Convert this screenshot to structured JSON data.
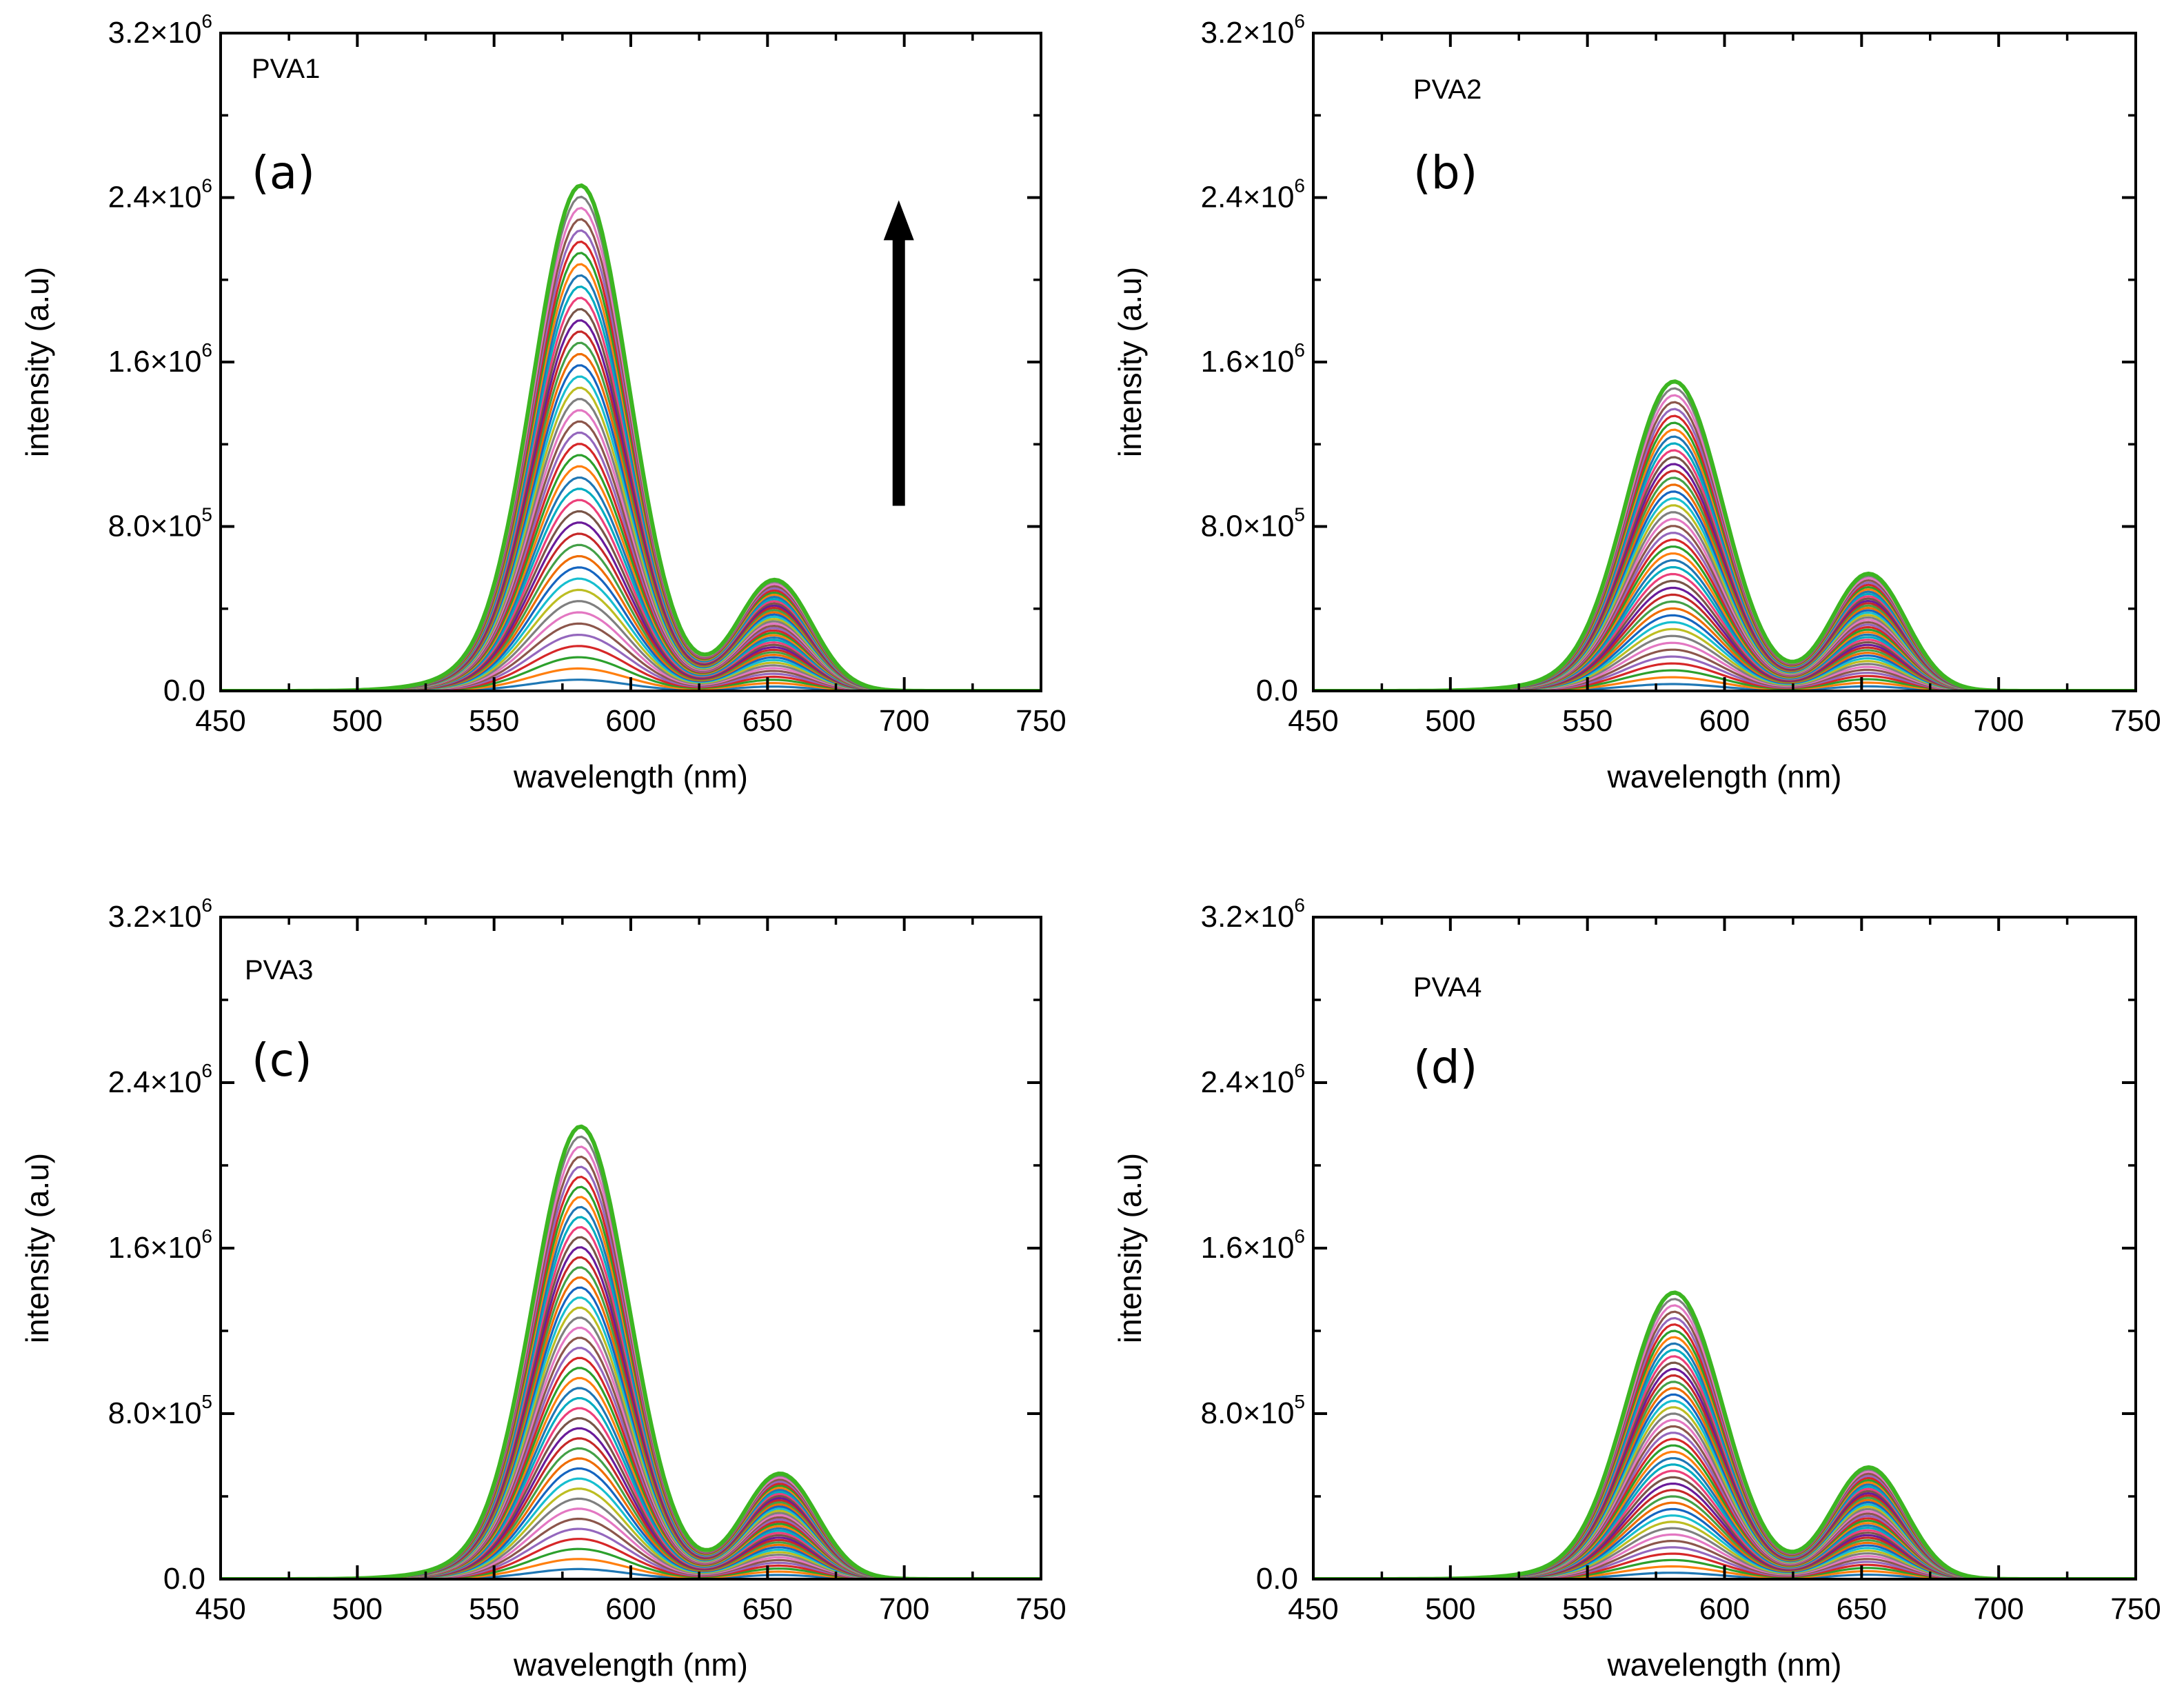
{
  "figure": {
    "x_tick_labels": [
      "450",
      "500",
      "550",
      "600",
      "650",
      "700",
      "750"
    ],
    "y_tick_labels": [
      {
        "mantissa": "0.0",
        "exp": ""
      },
      {
        "mantissa": "8.0×10",
        "exp": "5"
      },
      {
        "mantissa": "1.6×10",
        "exp": "6"
      },
      {
        "mantissa": "2.4×10",
        "exp": "6"
      },
      {
        "mantissa": "3.2×10",
        "exp": "6"
      }
    ],
    "series_colors": [
      "#1f77b4",
      "#ff7f0e",
      "#2ca02c",
      "#d62728",
      "#9467bd",
      "#8c564b",
      "#e377c2",
      "#7f7f7f",
      "#bcbd22",
      "#17becf",
      "#1565c0",
      "#ef6c00",
      "#43a047",
      "#c62828",
      "#6a1b9a",
      "#795548",
      "#ec407a",
      "#00acc1"
    ],
    "envelope_color": "#3cb521",
    "arrow_color": "#000000"
  },
  "chart_data": [
    {
      "type": "line",
      "panel": "(a)",
      "sample": "PVA1",
      "title": "",
      "xlabel": "wavelength (nm)",
      "ylabel": "intensity (a.u)",
      "xlim": [
        450,
        750
      ],
      "ylim": [
        0,
        3200000
      ],
      "x_ticks": [
        450,
        500,
        550,
        600,
        650,
        700,
        750
      ],
      "y_ticks": [
        0,
        800000,
        1600000,
        2400000,
        3200000
      ],
      "legend": "none",
      "annotation": "upward arrow near x=700 nm indicating intensity increasing with successive spectra",
      "series_count": 45,
      "peaks": [
        {
          "wavelength_nm": 581,
          "max_intensity": 2450000
        },
        {
          "wavelength_nm": 652,
          "max_intensity": 540000
        }
      ],
      "valley": {
        "wavelength_nm": 628,
        "max_intensity": 250000
      }
    },
    {
      "type": "line",
      "panel": "(b)",
      "sample": "PVA2",
      "title": "",
      "xlabel": "wavelength (nm)",
      "ylabel": "intensity (a.u)",
      "xlim": [
        450,
        750
      ],
      "ylim": [
        0,
        3200000
      ],
      "x_ticks": [
        450,
        500,
        550,
        600,
        650,
        700,
        750
      ],
      "y_ticks": [
        0,
        800000,
        1600000,
        2400000,
        3200000
      ],
      "legend": "none",
      "series_count": 45,
      "peaks": [
        {
          "wavelength_nm": 581,
          "max_intensity": 1500000
        },
        {
          "wavelength_nm": 652,
          "max_intensity": 570000
        }
      ],
      "valley": {
        "wavelength_nm": 625,
        "max_intensity": 210000
      }
    },
    {
      "type": "line",
      "panel": "(c)",
      "sample": "PVA3",
      "title": "",
      "xlabel": "wavelength (nm)",
      "ylabel": "intensity (a.u)",
      "xlim": [
        450,
        750
      ],
      "ylim": [
        0,
        3200000
      ],
      "x_ticks": [
        450,
        500,
        550,
        600,
        650,
        700,
        750
      ],
      "y_ticks": [
        0,
        800000,
        1600000,
        2400000,
        3200000
      ],
      "legend": "none",
      "series_count": 45,
      "peaks": [
        {
          "wavelength_nm": 581,
          "max_intensity": 2180000
        },
        {
          "wavelength_nm": 654,
          "max_intensity": 510000
        }
      ],
      "valley": {
        "wavelength_nm": 628,
        "max_intensity": 240000
      }
    },
    {
      "type": "line",
      "panel": "(d)",
      "sample": "PVA4",
      "title": "",
      "xlabel": "wavelength (nm)",
      "ylabel": "intensity (a.u)",
      "xlim": [
        450,
        750
      ],
      "ylim": [
        0,
        3200000
      ],
      "x_ticks": [
        450,
        500,
        550,
        600,
        650,
        700,
        750
      ],
      "y_ticks": [
        0,
        800000,
        1600000,
        2400000,
        3200000
      ],
      "legend": "none",
      "series_count": 45,
      "peaks": [
        {
          "wavelength_nm": 581,
          "max_intensity": 1380000
        },
        {
          "wavelength_nm": 652,
          "max_intensity": 540000
        }
      ],
      "valley": {
        "wavelength_nm": 625,
        "max_intensity": 200000
      }
    }
  ]
}
